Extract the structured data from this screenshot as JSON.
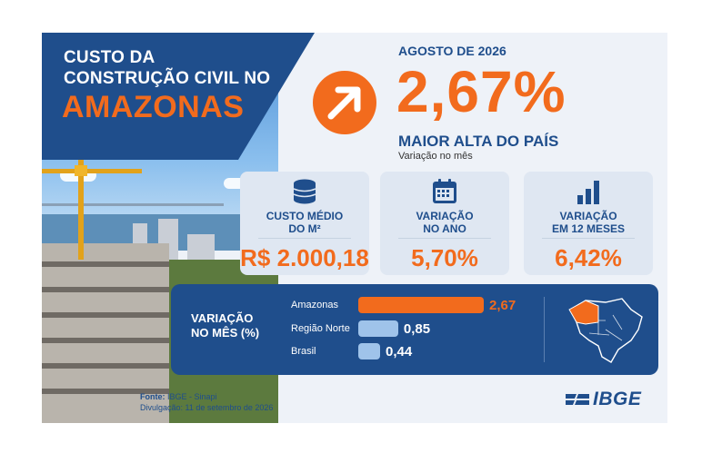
{
  "header": {
    "title_line1": "CUSTO DA",
    "title_line2": "CONSTRUÇÃO CIVIL NO",
    "title_state": "AMAZONAS",
    "date": "AGOSTO DE 2026",
    "main_value": "2,67%",
    "headline": "MAIOR ALTA DO PAÍS",
    "subline": "Variação no mês"
  },
  "stats": [
    {
      "icon": "coins-icon",
      "label_line1": "CUSTO MÉDIO",
      "label_line2": "DO M²",
      "value": "R$ 2.000,18"
    },
    {
      "icon": "calendar-icon",
      "label_line1": "VARIAÇÃO",
      "label_line2": "NO ANO",
      "value": "5,70%"
    },
    {
      "icon": "bar-chart-icon",
      "label_line1": "VARIAÇÃO",
      "label_line2": "EM 12 MESES",
      "value": "6,42%"
    }
  ],
  "chart_data": {
    "type": "bar",
    "orientation": "horizontal",
    "title": "VARIAÇÃO NO MÊS (%)",
    "categories": [
      "Amazonas",
      "Região Norte",
      "Brasil"
    ],
    "values": [
      2.67,
      0.85,
      0.44
    ],
    "value_labels": [
      "2,67",
      "0,85",
      "0,44"
    ],
    "colors": [
      "#f26b1d",
      "#9fc3ea",
      "#9fc3ea"
    ]
  },
  "footer": {
    "source_label": "Fonte:",
    "source": "IBGE - Sinapi",
    "release": "Divulgação: 11 de setembro de 2026",
    "logo": "IBGE"
  },
  "colors": {
    "navy": "#1f4e8c",
    "orange": "#f26b1d",
    "light_bar": "#9fc3ea"
  }
}
